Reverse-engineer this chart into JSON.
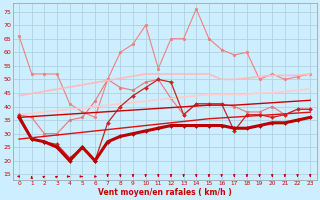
{
  "x": [
    0,
    1,
    2,
    3,
    4,
    5,
    6,
    7,
    8,
    9,
    10,
    11,
    12,
    13,
    14,
    15,
    16,
    17,
    18,
    19,
    20,
    21,
    22,
    23
  ],
  "series": [
    {
      "name": "rafales_light_pink",
      "color": "#f08080",
      "linewidth": 0.8,
      "marker": "o",
      "markersize": 2,
      "y": [
        66,
        52,
        52,
        52,
        41,
        38,
        36,
        50,
        60,
        63,
        70,
        54,
        65,
        65,
        76,
        65,
        61,
        59,
        60,
        50,
        52,
        50,
        51,
        52
      ]
    },
    {
      "name": "moyen_medium_pink",
      "color": "#e87878",
      "linewidth": 0.8,
      "marker": "o",
      "markersize": 2,
      "y": [
        37,
        36,
        30,
        30,
        35,
        36,
        42,
        50,
        47,
        46,
        49,
        50,
        43,
        37,
        41,
        41,
        41,
        40,
        38,
        38,
        40,
        37,
        39,
        39
      ]
    },
    {
      "name": "trend_upper_light",
      "color": "#ffbbbb",
      "linewidth": 1.2,
      "marker": null,
      "y": [
        44,
        44.8,
        45.6,
        46.4,
        47.2,
        48.0,
        48.8,
        49.6,
        50.4,
        51.2,
        52.0,
        52.0,
        52.0,
        52.0,
        52.0,
        52.0,
        50.0,
        50.0,
        50.5,
        51.0,
        51.5,
        51.5,
        51.5,
        52.0
      ]
    },
    {
      "name": "trend_lower_light",
      "color": "#ffcccc",
      "linewidth": 1.2,
      "marker": null,
      "y": [
        37,
        37.5,
        38.0,
        38.5,
        39.0,
        39.5,
        40.0,
        40.5,
        41.0,
        41.5,
        42.0,
        42.5,
        43.0,
        43.5,
        44.0,
        44.5,
        44.5,
        44.5,
        44.5,
        45.0,
        45.0,
        45.5,
        46.0,
        46.5
      ]
    },
    {
      "name": "rafales_dark_red",
      "color": "#cc2222",
      "linewidth": 0.9,
      "marker": "D",
      "markersize": 2,
      "y": [
        37,
        28,
        27,
        26,
        21,
        25,
        20,
        34,
        40,
        44,
        47,
        50,
        49,
        37,
        41,
        41,
        41,
        31,
        37,
        37,
        36,
        37,
        39,
        39
      ]
    },
    {
      "name": "moyen_dark_red",
      "color": "#bb0000",
      "linewidth": 2.2,
      "marker": "D",
      "markersize": 2,
      "y": [
        36,
        28,
        27,
        25,
        20,
        25,
        20,
        27,
        29,
        30,
        31,
        32,
        33,
        33,
        33,
        33,
        33,
        32,
        32,
        33,
        34,
        34,
        35,
        36
      ]
    },
    {
      "name": "trend_dark1",
      "color": "#cc0000",
      "linewidth": 1.0,
      "marker": null,
      "y": [
        36,
        36.3,
        36.6,
        36.9,
        37.2,
        37.5,
        37.8,
        38.1,
        38.4,
        38.7,
        39.0,
        39.3,
        39.6,
        39.9,
        40.2,
        40.5,
        40.5,
        40.5,
        40.8,
        41.1,
        41.4,
        41.7,
        42.0,
        42.3
      ]
    },
    {
      "name": "trend_dark2",
      "color": "#dd1111",
      "linewidth": 1.0,
      "marker": null,
      "y": [
        28,
        28.5,
        29.0,
        29.5,
        30.0,
        30.5,
        31.0,
        31.5,
        32.0,
        32.5,
        33.0,
        33.5,
        34.0,
        34.5,
        35.0,
        35.5,
        35.8,
        36.1,
        36.4,
        36.7,
        37.0,
        37.3,
        37.6,
        37.9
      ]
    }
  ],
  "wind_arrows": {
    "x": [
      0,
      1,
      2,
      3,
      4,
      5,
      6,
      7,
      8,
      9,
      10,
      11,
      12,
      13,
      14,
      15,
      16,
      17,
      18,
      19,
      20,
      21,
      22,
      23
    ],
    "angles_deg": [
      225,
      180,
      157,
      157,
      90,
      90,
      45,
      0,
      0,
      0,
      0,
      0,
      0,
      0,
      0,
      0,
      0,
      0,
      0,
      0,
      0,
      0,
      0,
      0
    ]
  },
  "xlabel": "Vent moyen/en rafales ( km/h )",
  "yticks": [
    15,
    20,
    25,
    30,
    35,
    40,
    45,
    50,
    55,
    60,
    65,
    70,
    75
  ],
  "xticks": [
    0,
    1,
    2,
    3,
    4,
    5,
    6,
    7,
    8,
    9,
    10,
    11,
    12,
    13,
    14,
    15,
    16,
    17,
    18,
    19,
    20,
    21,
    22,
    23
  ],
  "xlim": [
    -0.5,
    23.5
  ],
  "ylim": [
    13,
    78
  ],
  "bg_color": "#cceeff",
  "grid_color": "#aaccdd",
  "arrow_color": "#cc0000",
  "xlabel_color": "#cc0000",
  "tick_color": "#cc0000"
}
